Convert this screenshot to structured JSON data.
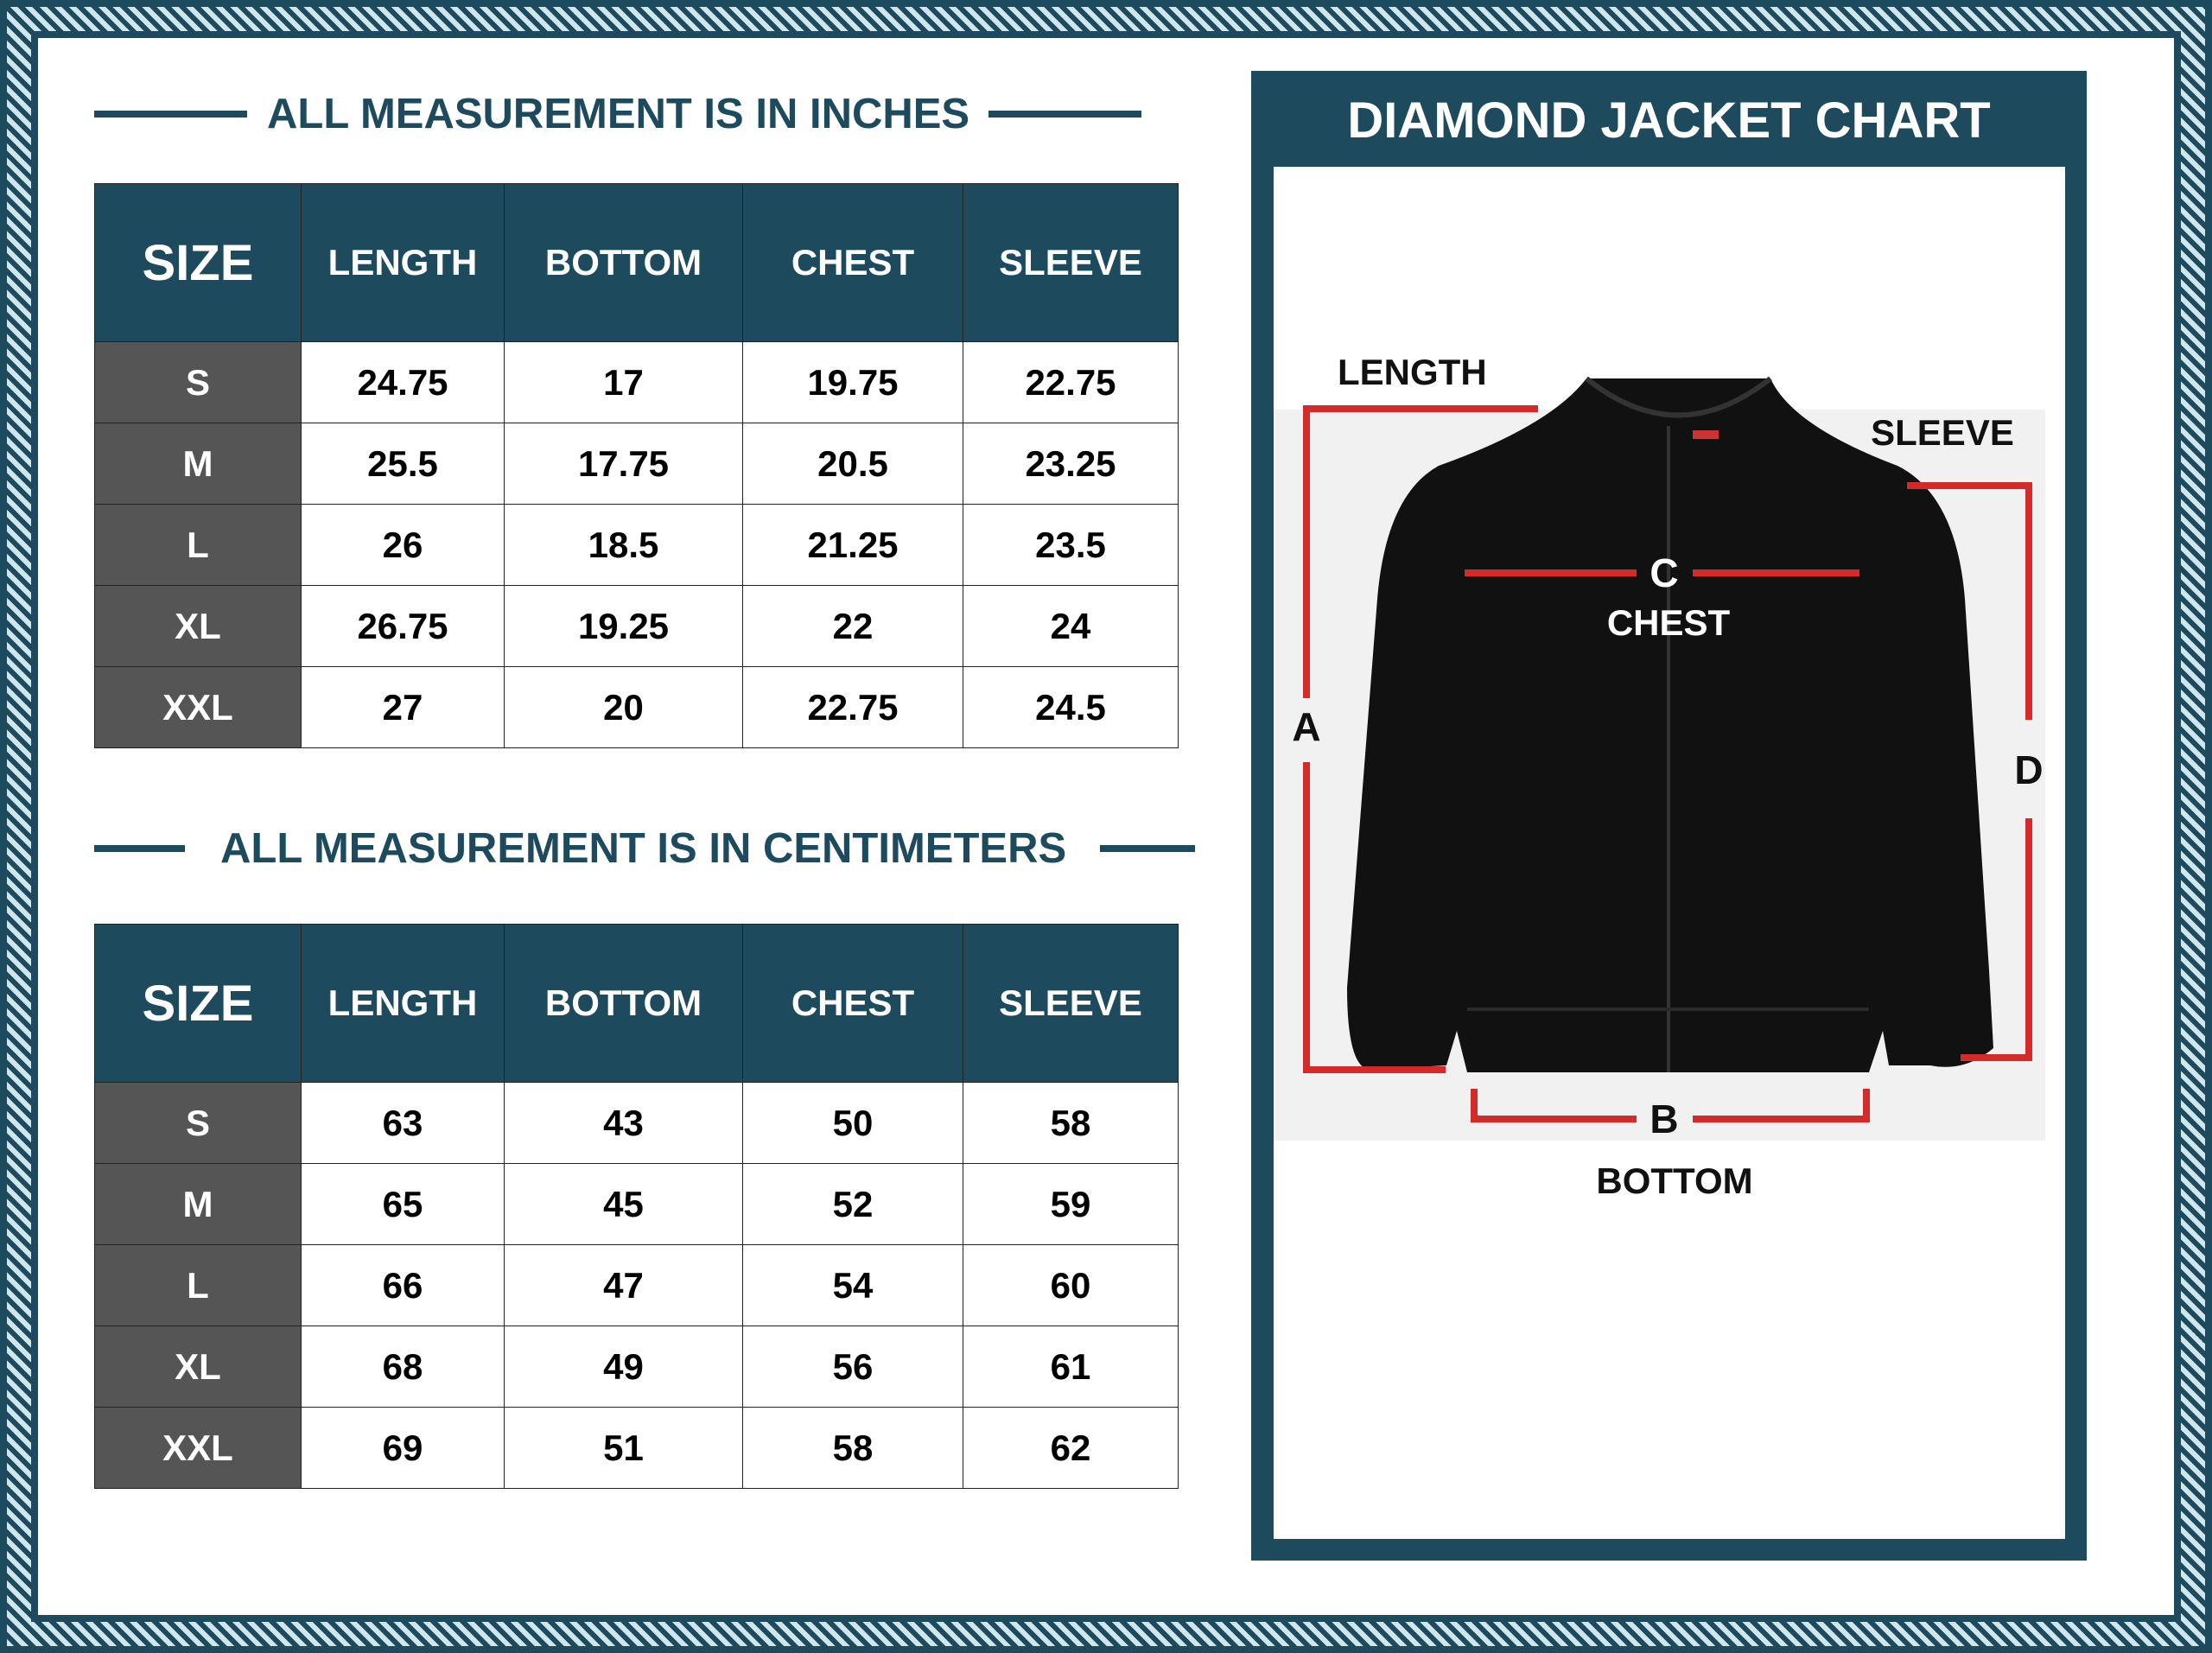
{
  "inches": {
    "heading": "ALL MEASUREMENT IS IN INCHES",
    "columns": [
      "SIZE",
      "LENGTH",
      "BOTTOM",
      "CHEST",
      "SLEEVE"
    ],
    "rows": [
      [
        "S",
        "24.75",
        "17",
        "19.75",
        "22.75"
      ],
      [
        "M",
        "25.5",
        "17.75",
        "20.5",
        "23.25"
      ],
      [
        "L",
        "26",
        "18.5",
        "21.25",
        "23.5"
      ],
      [
        "XL",
        "26.75",
        "19.25",
        "22",
        "24"
      ],
      [
        "XXL",
        "27",
        "20",
        "22.75",
        "24.5"
      ]
    ]
  },
  "centimeters": {
    "heading": "ALL MEASUREMENT IS IN CENTIMETERS",
    "columns": [
      "SIZE",
      "LENGTH",
      "BOTTOM",
      "CHEST",
      "SLEEVE"
    ],
    "rows": [
      [
        "S",
        "63",
        "43",
        "50",
        "58"
      ],
      [
        "M",
        "65",
        "45",
        "52",
        "59"
      ],
      [
        "L",
        "66",
        "47",
        "54",
        "60"
      ],
      [
        "XL",
        "68",
        "49",
        "56",
        "61"
      ],
      [
        "XXL",
        "69",
        "51",
        "58",
        "62"
      ]
    ]
  },
  "diagram": {
    "title": "DIAMOND JACKET CHART",
    "labels": {
      "length": "LENGTH",
      "sleeve": "SLEEVE",
      "chest": "CHEST",
      "bottom": "BOTTOM",
      "a": "A",
      "b": "B",
      "c": "C",
      "d": "D"
    }
  },
  "colors": {
    "primary": "#1d4a5c",
    "size_column": "#555555",
    "measure_lines": "#d42a2a",
    "jacket": "#111111"
  }
}
